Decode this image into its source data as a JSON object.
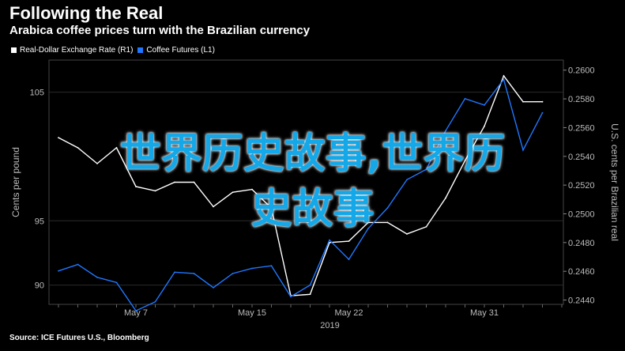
{
  "header": {
    "title": "Following the Real",
    "subtitle": "Arabica coffee prices turn with the Brazilian currency"
  },
  "footer": {
    "source": "Source: ICE Futures U.S., Bloomberg"
  },
  "overlay": {
    "line1": "世界历史故事,世界历",
    "line2": "史故事"
  },
  "chart_data": {
    "type": "line",
    "x_ticks": [
      "May 7",
      "May 15",
      "May 22",
      "May 31"
    ],
    "x_tick_index": [
      4,
      10,
      15,
      22
    ],
    "x_year": "2019",
    "left_axis": {
      "label": "Cents per pound",
      "ticks": [
        "90",
        "95",
        "105"
      ],
      "tick_values": [
        90,
        95,
        105
      ],
      "range": [
        88.5,
        107.5
      ]
    },
    "right_axis": {
      "label": "U.S. cents per Brazilian real",
      "ticks": [
        "0.2440",
        "0.2460",
        "0.2480",
        "0.2500",
        "0.2520",
        "0.2540",
        "0.2560",
        "0.2580",
        "0.2600"
      ],
      "tick_values": [
        0.244,
        0.246,
        0.248,
        0.25,
        0.252,
        0.254,
        0.256,
        0.258,
        0.26
      ],
      "range": [
        0.2437,
        0.2607
      ]
    },
    "series": [
      {
        "name": "Real-Dollar Exchange Rate (R1)",
        "color": "#ffffff",
        "axis": "right",
        "x": [
          0,
          1,
          2,
          3,
          4,
          5,
          6,
          7,
          8,
          9,
          10,
          11,
          12,
          13,
          14,
          15,
          16,
          17,
          18,
          19,
          20,
          21,
          22,
          23,
          24,
          25
        ],
        "values": [
          0.2553,
          0.2546,
          0.2535,
          0.2546,
          0.2519,
          0.2516,
          0.2522,
          0.2522,
          0.2505,
          0.2515,
          0.2517,
          0.2504,
          0.2443,
          0.2444,
          0.248,
          0.2481,
          0.2494,
          0.2494,
          0.2486,
          0.2491,
          0.2511,
          0.2537,
          0.2561,
          0.2596,
          0.2578,
          0.2578
        ]
      },
      {
        "name": "Coffee Futures (L1)",
        "color": "#1f77ff",
        "axis": "left",
        "x": [
          0,
          1,
          2,
          3,
          4,
          5,
          6,
          7,
          8,
          9,
          10,
          11,
          12,
          13,
          14,
          15,
          16,
          17,
          18,
          19,
          20,
          21,
          22,
          23,
          24,
          25
        ],
        "values": [
          91.1,
          91.6,
          90.6,
          90.2,
          88.0,
          88.7,
          91.0,
          90.9,
          89.8,
          90.9,
          91.3,
          91.5,
          89.1,
          90.0,
          93.5,
          92.0,
          94.4,
          96.0,
          98.2,
          99.0,
          102.0,
          104.5,
          104.0,
          106.0,
          100.5,
          103.4
        ]
      }
    ]
  }
}
